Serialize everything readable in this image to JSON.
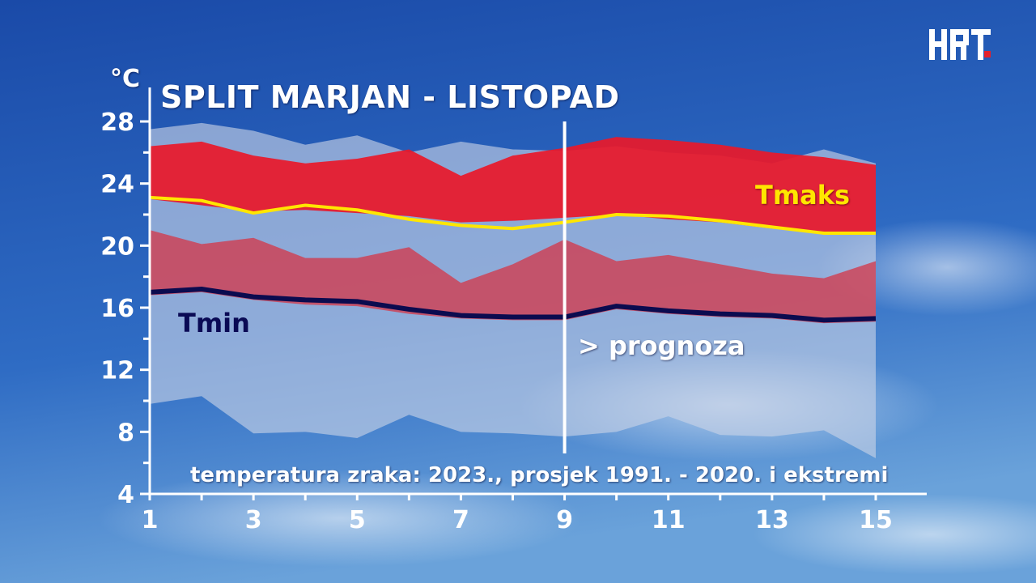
{
  "brand": {
    "logo_text": "HRT",
    "logo_color": "#ffffff",
    "logo_accent": "#e4202a"
  },
  "colors": {
    "sky_top": "#1c4fae",
    "sky_bottom": "#5f97d6",
    "extreme_band": "#c9d4e6",
    "avg_max_band": "#e8192b",
    "avg_min_band": "#d23a4c",
    "tmax_line": "#ffe600",
    "tmin_line": "#0b0b4f",
    "axis": "#ffffff"
  },
  "chart_data": {
    "type": "area",
    "title": "SPLIT MARJAN - LISTOPAD",
    "subtitle": "temperatura zraka: 2023., prosjek 1991. - 2020. i ekstremi",
    "ylabel": "°C",
    "xlim": [
      1,
      15
    ],
    "ylim": [
      4,
      28
    ],
    "xticks": [
      1,
      3,
      5,
      7,
      9,
      11,
      13,
      15
    ],
    "yticks": [
      4,
      8,
      12,
      16,
      20,
      24,
      28
    ],
    "grid": false,
    "forecast_from_day": 9,
    "forecast_label": "> prognoza",
    "series": [
      {
        "id": "abs_max",
        "role": "extreme-max",
        "values": [
          27.5,
          27.9,
          27.4,
          26.5,
          27.1,
          26.0,
          26.7,
          26.2,
          26.1,
          26.4,
          26.0,
          25.8,
          25.3,
          26.2,
          25.3
        ]
      },
      {
        "id": "avg_max_upper",
        "role": "average-max-upper",
        "values": [
          26.4,
          26.7,
          25.8,
          25.3,
          25.6,
          26.2,
          24.5,
          25.8,
          26.3,
          27.0,
          26.8,
          26.5,
          26.0,
          25.7,
          25.2
        ]
      },
      {
        "id": "avg_max_lower",
        "role": "average-max-lower",
        "values": [
          23.0,
          22.6,
          22.2,
          22.3,
          22.1,
          21.9,
          21.5,
          21.6,
          21.8,
          22.0,
          21.7,
          21.5,
          21.1,
          20.8,
          20.8
        ]
      },
      {
        "id": "tmax",
        "name": "Tmaks",
        "role": "tmax-2023",
        "values": [
          23.1,
          22.9,
          22.1,
          22.6,
          22.3,
          21.7,
          21.3,
          21.1,
          21.5,
          22.0,
          21.9,
          21.6,
          21.2,
          20.8,
          20.8
        ]
      },
      {
        "id": "avg_min_upper",
        "role": "average-min-upper",
        "values": [
          21.0,
          20.1,
          20.5,
          19.2,
          19.2,
          19.9,
          17.6,
          18.8,
          20.4,
          19.0,
          19.4,
          18.8,
          18.2,
          17.9,
          19.0
        ]
      },
      {
        "id": "tmin",
        "name": "Tmin",
        "role": "tmin-2023",
        "values": [
          17.0,
          17.2,
          16.7,
          16.5,
          16.4,
          15.9,
          15.5,
          15.4,
          15.4,
          16.1,
          15.8,
          15.6,
          15.5,
          15.2,
          15.3
        ]
      },
      {
        "id": "avg_min_lower",
        "role": "average-min-lower",
        "values": [
          16.8,
          17.0,
          16.5,
          16.2,
          16.1,
          15.6,
          15.3,
          15.2,
          15.2,
          15.9,
          15.6,
          15.4,
          15.3,
          15.0,
          15.1
        ]
      },
      {
        "id": "abs_min",
        "role": "extreme-min",
        "values": [
          9.8,
          10.3,
          7.9,
          8.0,
          7.6,
          9.1,
          8.0,
          7.9,
          7.7,
          8.0,
          9.0,
          7.8,
          7.7,
          8.1,
          6.3
        ]
      }
    ]
  }
}
